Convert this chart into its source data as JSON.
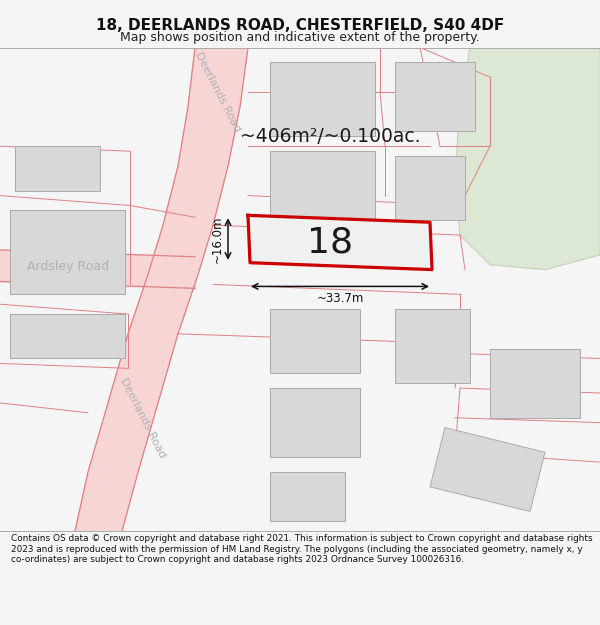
{
  "title": "18, DEERLANDS ROAD, CHESTERFIELD, S40 4DF",
  "subtitle": "Map shows position and indicative extent of the property.",
  "footer": "Contains OS data © Crown copyright and database right 2021. This information is subject to Crown copyright and database rights 2023 and is reproduced with the permission of HM Land Registry. The polygons (including the associated geometry, namely x, y co-ordinates) are subject to Crown copyright and database rights 2023 Ordnance Survey 100026316.",
  "bg_color": "#f5f5f5",
  "map_bg": "#ffffff",
  "road_color": "#f7d5d5",
  "road_edge_color": "#e08080",
  "building_fill": "#d8d8d8",
  "building_edge": "#aaaaaa",
  "green_fill": "#dce8d4",
  "highlight_color": "#cc0000",
  "area_text": "~406m²/~0.100ac.",
  "number_text": "18",
  "width_label": "~33.7m",
  "height_label": "~16.0m",
  "road_label_upper": "Deerlands Road",
  "road_label_lower": "Deerlands Road",
  "road_label_ardsley": "Ardsley Road"
}
